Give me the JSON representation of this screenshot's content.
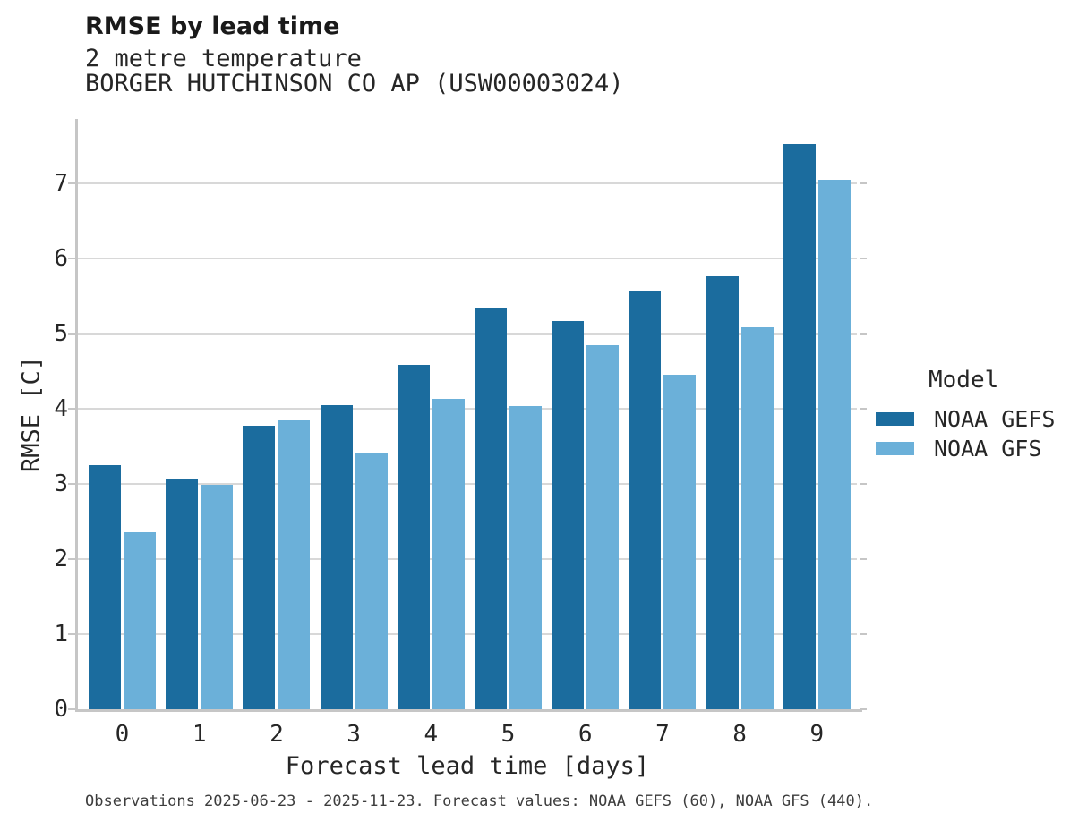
{
  "header": {
    "title": "RMSE by lead time",
    "subtitle_line1": "2 metre temperature",
    "subtitle_line2": "BORGER HUTCHINSON CO AP (USW00003024)"
  },
  "chart_data": {
    "type": "bar",
    "title": "RMSE by lead time",
    "subtitle": "2 metre temperature — BORGER HUTCHINSON CO AP (USW00003024)",
    "categories": [
      "0",
      "1",
      "2",
      "3",
      "4",
      "5",
      "6",
      "7",
      "8",
      "9"
    ],
    "series": [
      {
        "name": "NOAA GEFS",
        "color": "#1b6c9e",
        "values": [
          3.25,
          3.06,
          3.78,
          4.05,
          4.58,
          5.35,
          5.17,
          5.57,
          5.76,
          7.53
        ]
      },
      {
        "name": "NOAA GFS",
        "color": "#6bb0d9",
        "values": [
          2.36,
          2.99,
          3.85,
          3.42,
          4.13,
          4.04,
          4.85,
          4.45,
          5.09,
          7.05
        ]
      }
    ],
    "xlabel": "Forecast lead time [days]",
    "ylabel": "RMSE [C]",
    "yticks": [
      0,
      1,
      2,
      3,
      4,
      5,
      6,
      7
    ],
    "ylim": [
      0,
      7.86
    ],
    "grid": "horizontal",
    "legend": {
      "title": "Model",
      "entries": [
        "NOAA GEFS",
        "NOAA GFS"
      ],
      "position": "right-center"
    }
  },
  "footer": {
    "note": "Observations 2025-06-23 - 2025-11-23. Forecast values: NOAA GEFS (60), NOAA GFS (440)."
  },
  "colors": {
    "gefs_bar": "#1b6c9e",
    "gfs_bar": "#6bb0d9",
    "gridline": "#d8d8d8",
    "axis_spine": "#c6c6c6",
    "title_text": "#1a1a1a",
    "body_text": "#262626",
    "footer_text": "#3d3d3d"
  }
}
